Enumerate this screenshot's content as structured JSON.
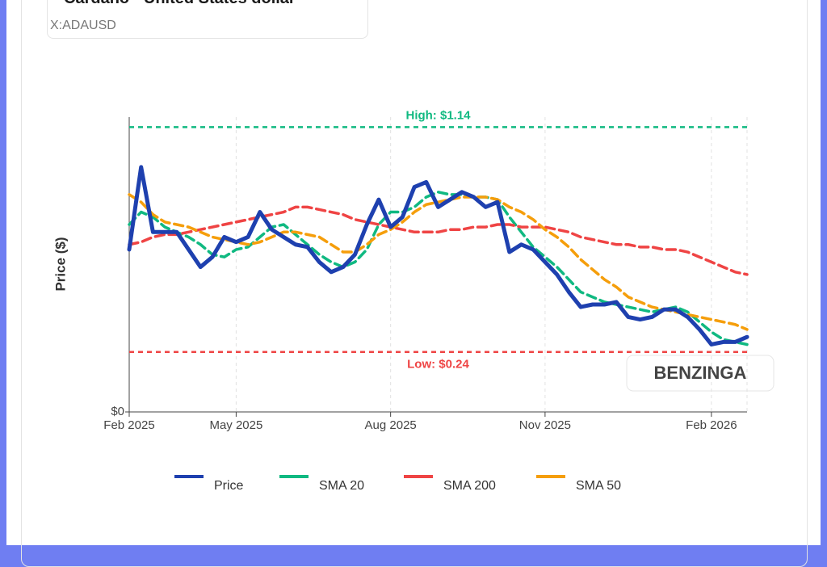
{
  "header": {
    "title": "Cardano - United States dollar",
    "subtitle": "X:ADAUSD"
  },
  "watermark": "BENZINGA",
  "chart_data": {
    "type": "line",
    "ylabel": "Price ($)",
    "ylim": [
      0,
      1.18
    ],
    "yticks": [
      {
        "value": 0,
        "label": "$0"
      }
    ],
    "grid": true,
    "categories": [
      "Feb 2025",
      null,
      null,
      null,
      null,
      null,
      null,
      null,
      null,
      "May 2025",
      null,
      null,
      null,
      null,
      null,
      null,
      null,
      null,
      null,
      null,
      null,
      null,
      "Aug 2025",
      null,
      null,
      null,
      null,
      null,
      null,
      null,
      null,
      null,
      null,
      null,
      null,
      "Nov 2025",
      null,
      null,
      null,
      null,
      null,
      null,
      null,
      null,
      null,
      null,
      null,
      null,
      null,
      "Feb 2026",
      null,
      null,
      null
    ],
    "reference_lines": [
      {
        "value": 1.14,
        "label": "High: $1.14",
        "color": "#10b981"
      },
      {
        "value": 0.24,
        "label": "Low: $0.24",
        "color": "#ef4444"
      }
    ],
    "series": [
      {
        "name": "Price",
        "color": "#1e40af",
        "values": [
          0.65,
          0.98,
          0.72,
          0.72,
          0.72,
          0.65,
          0.58,
          0.62,
          0.7,
          0.68,
          0.7,
          0.8,
          0.73,
          0.7,
          0.67,
          0.66,
          0.6,
          0.56,
          0.58,
          0.63,
          0.75,
          0.85,
          0.74,
          0.78,
          0.9,
          0.92,
          0.82,
          0.85,
          0.88,
          0.86,
          0.82,
          0.84,
          0.64,
          0.67,
          0.65,
          0.6,
          0.55,
          0.48,
          0.42,
          0.43,
          0.43,
          0.44,
          0.38,
          0.37,
          0.38,
          0.41,
          0.41,
          0.38,
          0.33,
          0.27,
          0.28,
          0.28,
          0.3
        ]
      },
      {
        "name": "SMA 20",
        "color": "#10b981",
        "values": [
          0.75,
          0.8,
          0.78,
          0.74,
          0.72,
          0.7,
          0.67,
          0.63,
          0.62,
          0.65,
          0.66,
          0.7,
          0.74,
          0.75,
          0.71,
          0.67,
          0.63,
          0.6,
          0.58,
          0.6,
          0.65,
          0.75,
          0.8,
          0.8,
          0.82,
          0.86,
          0.88,
          0.87,
          0.87,
          0.86,
          0.86,
          0.85,
          0.78,
          0.72,
          0.66,
          0.62,
          0.58,
          0.53,
          0.48,
          0.46,
          0.44,
          0.43,
          0.42,
          0.41,
          0.4,
          0.41,
          0.42,
          0.4,
          0.36,
          0.32,
          0.29,
          0.28,
          0.27
        ]
      },
      {
        "name": "SMA 200",
        "color": "#ef4444",
        "values": [
          0.67,
          0.68,
          0.7,
          0.71,
          0.71,
          0.72,
          0.73,
          0.74,
          0.75,
          0.76,
          0.77,
          0.78,
          0.79,
          0.8,
          0.82,
          0.82,
          0.81,
          0.8,
          0.79,
          0.77,
          0.76,
          0.75,
          0.74,
          0.73,
          0.72,
          0.72,
          0.72,
          0.73,
          0.73,
          0.74,
          0.74,
          0.75,
          0.75,
          0.74,
          0.74,
          0.74,
          0.73,
          0.72,
          0.7,
          0.69,
          0.68,
          0.67,
          0.67,
          0.66,
          0.66,
          0.65,
          0.65,
          0.64,
          0.62,
          0.6,
          0.58,
          0.56,
          0.55
        ]
      },
      {
        "name": "SMA 50",
        "color": "#f59e0b",
        "values": [
          0.87,
          0.84,
          0.79,
          0.76,
          0.75,
          0.74,
          0.72,
          0.7,
          0.69,
          0.68,
          0.67,
          0.68,
          0.7,
          0.72,
          0.72,
          0.71,
          0.7,
          0.67,
          0.64,
          0.64,
          0.67,
          0.71,
          0.73,
          0.76,
          0.8,
          0.83,
          0.84,
          0.85,
          0.86,
          0.86,
          0.86,
          0.85,
          0.82,
          0.8,
          0.77,
          0.73,
          0.7,
          0.66,
          0.61,
          0.57,
          0.53,
          0.5,
          0.46,
          0.44,
          0.42,
          0.41,
          0.4,
          0.39,
          0.38,
          0.37,
          0.36,
          0.35,
          0.33
        ]
      }
    ]
  }
}
